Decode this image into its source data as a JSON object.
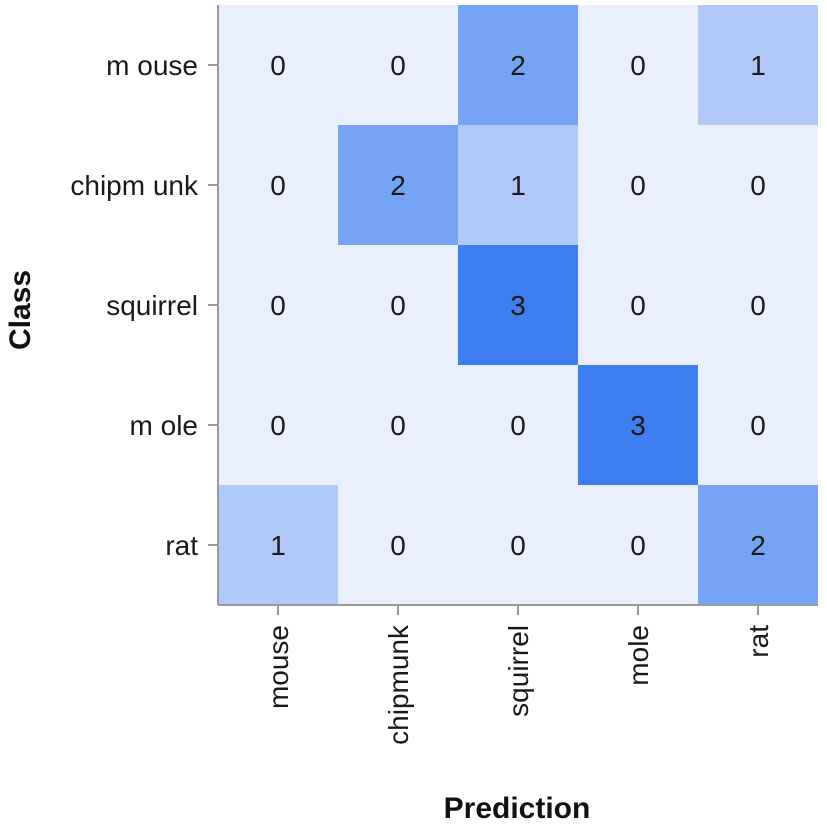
{
  "chart_data": {
    "type": "heatmap",
    "xlabel": "Prediction",
    "ylabel": "Class",
    "rows": [
      "mouse",
      "chipmunk",
      "squirrel",
      "mole",
      "rat"
    ],
    "columns": [
      "mouse",
      "chipmunk",
      "squirrel",
      "mole",
      "rat"
    ],
    "row_tick_labels": [
      "m ouse",
      "chipm unk",
      "squirrel",
      "m ole",
      "rat"
    ],
    "column_tick_labels": [
      "mouse",
      "chipmunk",
      "squirrel",
      "mole",
      "rat"
    ],
    "values": [
      [
        0,
        0,
        2,
        0,
        1
      ],
      [
        0,
        2,
        1,
        0,
        0
      ],
      [
        0,
        0,
        3,
        0,
        0
      ],
      [
        0,
        0,
        0,
        3,
        0
      ],
      [
        1,
        0,
        0,
        0,
        2
      ]
    ],
    "value_range": [
      0,
      3
    ],
    "colors": {
      "low": "#e9effd",
      "high": "#3d7ef0",
      "axis": "#999999",
      "text": "#1a1a1a"
    }
  }
}
